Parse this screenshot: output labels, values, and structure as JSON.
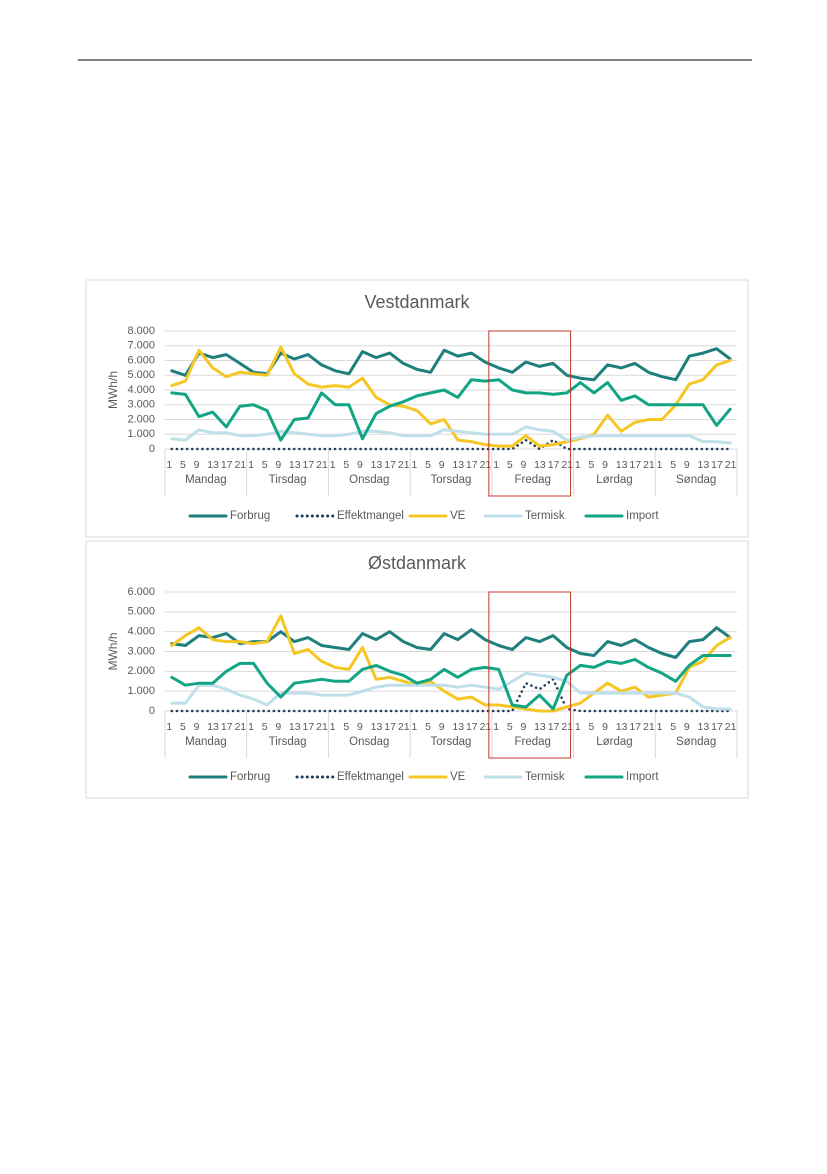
{
  "chart_data": [
    {
      "type": "line",
      "title": "Vestdanmark",
      "y_label": "MWh/h",
      "categories": [
        1,
        5,
        9,
        13,
        17,
        21,
        1,
        5,
        9,
        13,
        17,
        21,
        1,
        5,
        9,
        13,
        17,
        21,
        1,
        5,
        9,
        13,
        17,
        21,
        1,
        5,
        9,
        13,
        17,
        21,
        1,
        5,
        9,
        13,
        17,
        21,
        1,
        5,
        9,
        13,
        17,
        21
      ],
      "groups": [
        "Mandag",
        "Tirsdag",
        "Onsdag",
        "Torsdag",
        "Fredag",
        "Lørdag",
        "Søndag"
      ],
      "series": [
        {
          "name": "Forbrug",
          "color": "#1e7f7c",
          "values": [
            5300,
            5000,
            6500,
            6200,
            6400,
            5800,
            5200,
            5100,
            6500,
            6100,
            6400,
            5700,
            5300,
            5100,
            6600,
            6200,
            6500,
            5800,
            5400,
            5200,
            6700,
            6300,
            6500,
            5900,
            5500,
            5200,
            5900,
            5600,
            5800,
            5000,
            4800,
            4700,
            5700,
            5500,
            5800,
            5200,
            4900,
            4700,
            6300,
            6500,
            6800,
            6100
          ]
        },
        {
          "name": "Effektmangel",
          "color": "#1f3b57",
          "style": "dotted",
          "values": [
            0,
            0,
            0,
            0,
            0,
            0,
            0,
            0,
            0,
            0,
            0,
            0,
            0,
            0,
            0,
            0,
            0,
            0,
            0,
            0,
            0,
            0,
            0,
            0,
            0,
            0,
            600,
            0,
            600,
            0,
            0,
            0,
            0,
            0,
            0,
            0,
            0,
            0,
            0,
            0,
            0,
            0
          ]
        },
        {
          "name": "VE",
          "color": "#f6c624",
          "values": [
            4300,
            4600,
            6700,
            5500,
            4900,
            5200,
            5100,
            5000,
            6900,
            5100,
            4400,
            4200,
            4300,
            4200,
            4800,
            3500,
            3000,
            2900,
            2600,
            1700,
            2000,
            600,
            500,
            300,
            200,
            200,
            900,
            200,
            300,
            500,
            700,
            1000,
            2300,
            1200,
            1800,
            2000,
            2000,
            3000,
            4400,
            4700,
            5700,
            6000
          ]
        },
        {
          "name": "Termisk",
          "color": "#bfe0ea",
          "values": [
            700,
            600,
            1300,
            1100,
            1100,
            900,
            900,
            1000,
            1200,
            1100,
            1000,
            900,
            900,
            1000,
            1200,
            1200,
            1100,
            900,
            900,
            900,
            1300,
            1200,
            1100,
            1000,
            1000,
            1000,
            1500,
            1300,
            1200,
            600,
            800,
            900,
            900,
            900,
            900,
            900,
            900,
            900,
            900,
            500,
            500,
            400
          ]
        },
        {
          "name": "Import",
          "color": "#12a585",
          "values": [
            3800,
            3700,
            2200,
            2500,
            1500,
            2900,
            3000,
            2600,
            600,
            2000,
            2100,
            3800,
            3000,
            3000,
            700,
            2400,
            2900,
            3200,
            3600,
            3800,
            4000,
            3500,
            4700,
            4600,
            4700,
            4000,
            3800,
            3800,
            3700,
            3800,
            4500,
            3800,
            4500,
            3300,
            3600,
            3000,
            3000,
            3000,
            3000,
            3000,
            1600,
            2700
          ]
        }
      ],
      "ylim": [
        0,
        8000
      ],
      "yticks": [
        0,
        {
          "value": 1000,
          "label": "1.000"
        },
        {
          "value": 2000,
          "label": "2.000"
        },
        {
          "value": 3000,
          "label": "3.000"
        },
        {
          "value": 4000,
          "label": "4.000"
        },
        {
          "value": 5000,
          "label": "5.000"
        },
        {
          "value": 6000,
          "label": "6.000"
        },
        {
          "value": 7000,
          "label": "7.000"
        },
        {
          "value": 8000,
          "label": "8.000"
        }
      ],
      "grid": true,
      "legend": "bottom"
    },
    {
      "type": "line",
      "title": "Østdanmark",
      "y_label": "MWh/h",
      "categories": [
        1,
        5,
        9,
        13,
        17,
        21,
        1,
        5,
        9,
        13,
        17,
        21,
        1,
        5,
        9,
        13,
        17,
        21,
        1,
        5,
        9,
        13,
        17,
        21,
        1,
        5,
        9,
        13,
        17,
        21,
        1,
        5,
        9,
        13,
        17,
        21,
        1,
        5,
        9,
        13,
        17,
        21
      ],
      "groups": [
        "Mandag",
        "Tirsdag",
        "Onsdag",
        "Torsdag",
        "Fredag",
        "Lørdag",
        "Søndag"
      ],
      "series": [
        {
          "name": "Forbrug",
          "color": "#1e7f7c",
          "values": [
            3400,
            3300,
            3800,
            3700,
            3900,
            3400,
            3500,
            3500,
            4000,
            3500,
            3700,
            3300,
            3200,
            3100,
            3900,
            3600,
            4000,
            3500,
            3200,
            3100,
            3900,
            3600,
            4100,
            3600,
            3300,
            3100,
            3700,
            3500,
            3800,
            3200,
            2900,
            2800,
            3500,
            3300,
            3600,
            3200,
            2900,
            2700,
            3500,
            3600,
            4200,
            3700
          ]
        },
        {
          "name": "Effektmangel",
          "color": "#1f3b57",
          "style": "dotted",
          "values": [
            0,
            0,
            0,
            0,
            0,
            0,
            0,
            0,
            0,
            0,
            0,
            0,
            0,
            0,
            0,
            0,
            0,
            0,
            0,
            0,
            0,
            0,
            0,
            0,
            0,
            0,
            1400,
            1100,
            1600,
            100,
            0,
            0,
            0,
            0,
            0,
            0,
            0,
            0,
            0,
            0,
            0,
            0
          ]
        },
        {
          "name": "VE",
          "color": "#f6c624",
          "values": [
            3300,
            3800,
            4200,
            3600,
            3500,
            3500,
            3400,
            3500,
            4800,
            2900,
            3100,
            2500,
            2200,
            2100,
            3200,
            1600,
            1700,
            1500,
            1300,
            1500,
            1000,
            600,
            700,
            300,
            300,
            200,
            100,
            0,
            0,
            200,
            400,
            900,
            1400,
            1000,
            1200,
            700,
            800,
            900,
            2200,
            2500,
            3300,
            3700
          ]
        },
        {
          "name": "Termisk",
          "color": "#bfe0ea",
          "values": [
            400,
            400,
            1300,
            1300,
            1100,
            800,
            600,
            300,
            900,
            900,
            900,
            800,
            800,
            800,
            1000,
            1200,
            1300,
            1300,
            1300,
            1300,
            1300,
            1200,
            1300,
            1200,
            1100,
            1500,
            1900,
            1800,
            1700,
            1500,
            900,
            900,
            900,
            900,
            900,
            900,
            900,
            900,
            700,
            200,
            100,
            100
          ]
        },
        {
          "name": "Import",
          "color": "#12a585",
          "values": [
            1700,
            1300,
            1400,
            1400,
            2000,
            2400,
            2400,
            1400,
            700,
            1400,
            1500,
            1600,
            1500,
            1500,
            2100,
            2300,
            2000,
            1800,
            1400,
            1600,
            2100,
            1700,
            2100,
            2200,
            2100,
            300,
            200,
            800,
            100,
            1800,
            2300,
            2200,
            2500,
            2400,
            2600,
            2200,
            1900,
            1500,
            2300,
            2800,
            2800,
            2800
          ]
        }
      ],
      "ylim": [
        0,
        6000
      ],
      "yticks": [
        0,
        {
          "value": 1000,
          "label": "1.000"
        },
        {
          "value": 2000,
          "label": "2.000"
        },
        {
          "value": 3000,
          "label": "3.000"
        },
        {
          "value": 4000,
          "label": "4.000"
        },
        {
          "value": 5000,
          "label": "5.000"
        },
        {
          "value": 6000,
          "label": "6.000"
        }
      ],
      "grid": true,
      "legend": "bottom"
    }
  ]
}
